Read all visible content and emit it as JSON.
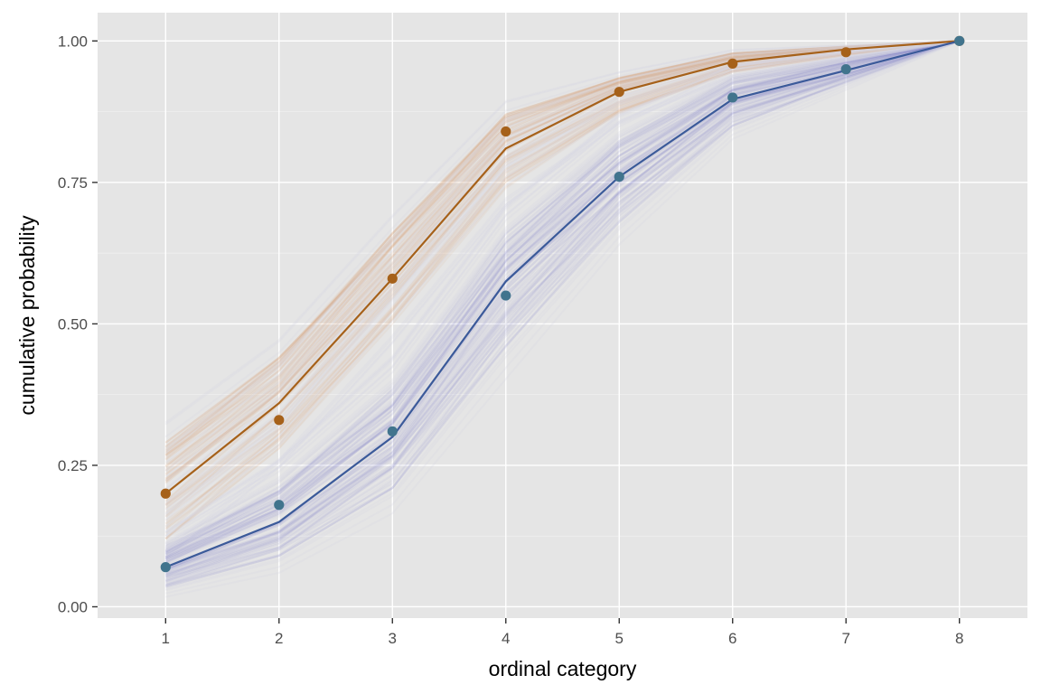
{
  "chart_data": {
    "type": "line",
    "title": "",
    "xlabel": "ordinal category",
    "ylabel": "cumulative probability",
    "x": [
      1,
      2,
      3,
      4,
      5,
      6,
      7,
      8
    ],
    "x_tick_labels": [
      "1",
      "2",
      "3",
      "4",
      "5",
      "6",
      "7",
      "8"
    ],
    "y_ticks": [
      0,
      0.25,
      0.5,
      0.75,
      1
    ],
    "y_tick_labels": [
      "0.00",
      "0.25",
      "0.50",
      "0.75",
      "1.00"
    ],
    "xlim": [
      0.4,
      8.6
    ],
    "ylim": [
      -0.02,
      1.05
    ],
    "grid": true,
    "legend": "none",
    "series": [
      {
        "color": "#a6611a",
        "band_color": "#d9914f",
        "observed": [
          0.2,
          0.33,
          0.58,
          0.84,
          0.91,
          0.96,
          0.98,
          1.0
        ],
        "fitted": [
          0.2,
          0.36,
          0.58,
          0.81,
          0.91,
          0.963,
          0.985,
          1.0
        ],
        "band_low": [
          0.12,
          0.28,
          0.5,
          0.74,
          0.87,
          0.945,
          0.975,
          1.0
        ],
        "band_high": [
          0.29,
          0.44,
          0.66,
          0.87,
          0.935,
          0.978,
          0.99,
          1.0
        ]
      },
      {
        "color": "#3b5a9a",
        "band_color": "#6f75c4",
        "point_color": "#41748d",
        "observed": [
          0.07,
          0.18,
          0.31,
          0.55,
          0.76,
          0.9,
          0.95,
          1.0
        ],
        "fitted": [
          0.07,
          0.15,
          0.3,
          0.575,
          0.76,
          0.897,
          0.948,
          1.0
        ],
        "band_low": [
          0.035,
          0.09,
          0.21,
          0.46,
          0.68,
          0.85,
          0.925,
          1.0
        ],
        "band_high": [
          0.11,
          0.22,
          0.39,
          0.66,
          0.83,
          0.935,
          0.97,
          1.0
        ]
      }
    ],
    "colors": {
      "panel": "#e5e5e5",
      "grid_major": "#ffffff",
      "grid_minor": "#f2f2f2"
    }
  }
}
